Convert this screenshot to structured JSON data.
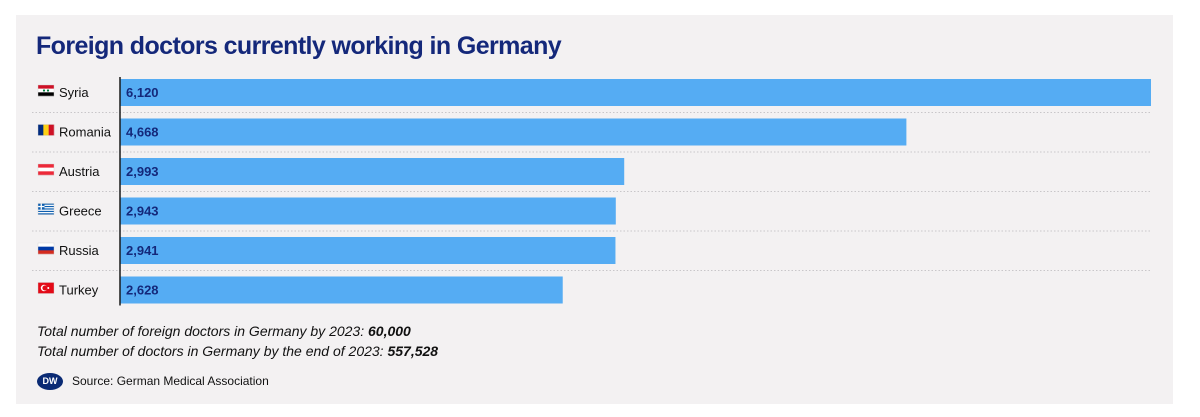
{
  "chart_data": {
    "type": "bar",
    "orientation": "horizontal",
    "title": "Foreign doctors currently working in Germany",
    "categories": [
      "Syria",
      "Romania",
      "Austria",
      "Greece",
      "Russia",
      "Turkey"
    ],
    "values": [
      6120,
      4668,
      2993,
      2943,
      2941,
      2628
    ],
    "value_labels": [
      "6,120",
      "4,668",
      "2,993",
      "2,943",
      "2,941",
      "2,628"
    ],
    "flags": [
      "syria",
      "romania",
      "austria",
      "greece",
      "russia",
      "turkey"
    ],
    "xlim": [
      0,
      6120
    ],
    "bar_color": "#55acf3",
    "value_label_color": "#14287a",
    "grid": false
  },
  "notes": [
    {
      "text": "Total number of foreign doctors in Germany by 2023: ",
      "value": "60,000"
    },
    {
      "text": "Total number of doctors in Germany by the end of 2023: ",
      "value": "557,528"
    }
  ],
  "source": {
    "logo": "DW",
    "text": "Source: German Medical Association"
  },
  "colors": {
    "title": "#14287a",
    "background": "#f3f1f2",
    "bar": "#55acf3"
  }
}
